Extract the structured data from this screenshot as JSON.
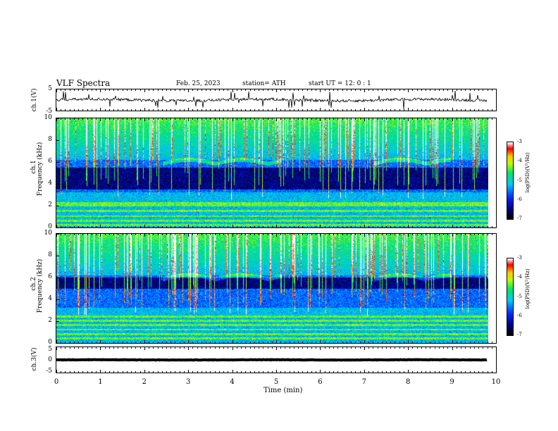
{
  "header": {
    "title": "VLF  Spectra",
    "date": "Feb. 25, 2023",
    "station": "station= ATH",
    "start_ut": "start  UT  =    12: 0   : 1"
  },
  "colorbar": {
    "label": "log(PSD)(V²/Hz)",
    "ticks": [
      "-3",
      "-4",
      "-5",
      "-6",
      "-7"
    ],
    "colors": [
      "#ffffff",
      "#ff0000",
      "#ffa500",
      "#ffff00",
      "#00ff00",
      "#00ffff",
      "#0000ff",
      "#000000"
    ]
  },
  "chart_data": [
    {
      "type": "line",
      "panel": "ch1-waveform",
      "ylabel": "ch.1(V)",
      "ylim": [
        -5,
        5
      ],
      "yticks": [
        "5",
        "-5"
      ],
      "xlim": [
        0,
        10
      ],
      "baseline": 0,
      "trace_end_x": 9.8,
      "color": "#000000"
    },
    {
      "type": "heatmap",
      "panel": "ch1-spectrogram",
      "ylabel_line1": "ch.1",
      "ylabel_line2": "Frequency  (kHz)",
      "ylim": [
        0,
        10
      ],
      "yticks": [
        "10",
        "8",
        "6",
        "4",
        "2",
        "0"
      ],
      "xlim": [
        0,
        10
      ],
      "data_end_x": 9.8,
      "zlim": [
        -7,
        -3
      ],
      "zlabel": "log(PSD)(V²/Hz)",
      "features": {
        "dark_band_khz": [
          3.5,
          5.5
        ],
        "lines_khz": [
          0.2,
          0.6,
          1.0,
          1.5,
          2.0,
          2.2
        ]
      }
    },
    {
      "type": "heatmap",
      "panel": "ch2-spectrogram",
      "ylabel_line1": "ch.2",
      "ylabel_line2": "Frequency  (kHz)",
      "ylim": [
        0,
        10
      ],
      "yticks": [
        "10",
        "8",
        "6",
        "4",
        "2",
        "0"
      ],
      "xlim": [
        0,
        10
      ],
      "data_end_x": 9.8,
      "zlim": [
        -7,
        -3
      ],
      "zlabel": "log(PSD)(V²/Hz)",
      "features": {
        "dark_band_khz": [
          5.0,
          6.0
        ],
        "lines_khz": [
          0.4,
          0.8,
          1.2,
          1.6,
          2.0,
          2.4
        ]
      }
    },
    {
      "type": "line",
      "panel": "ch3-waveform",
      "ylabel": "ch.3(V)",
      "ylim": [
        -5,
        5
      ],
      "yticks": [
        "5",
        "0",
        "-5"
      ],
      "xlim": [
        0,
        10
      ],
      "baseline": 0,
      "trace_end_x": 9.8,
      "color": "#000000"
    }
  ],
  "xaxis": {
    "label": "Time  (min)",
    "ticks": [
      "0",
      "1",
      "2",
      "3",
      "4",
      "5",
      "6",
      "7",
      "8",
      "9",
      "10"
    ]
  }
}
